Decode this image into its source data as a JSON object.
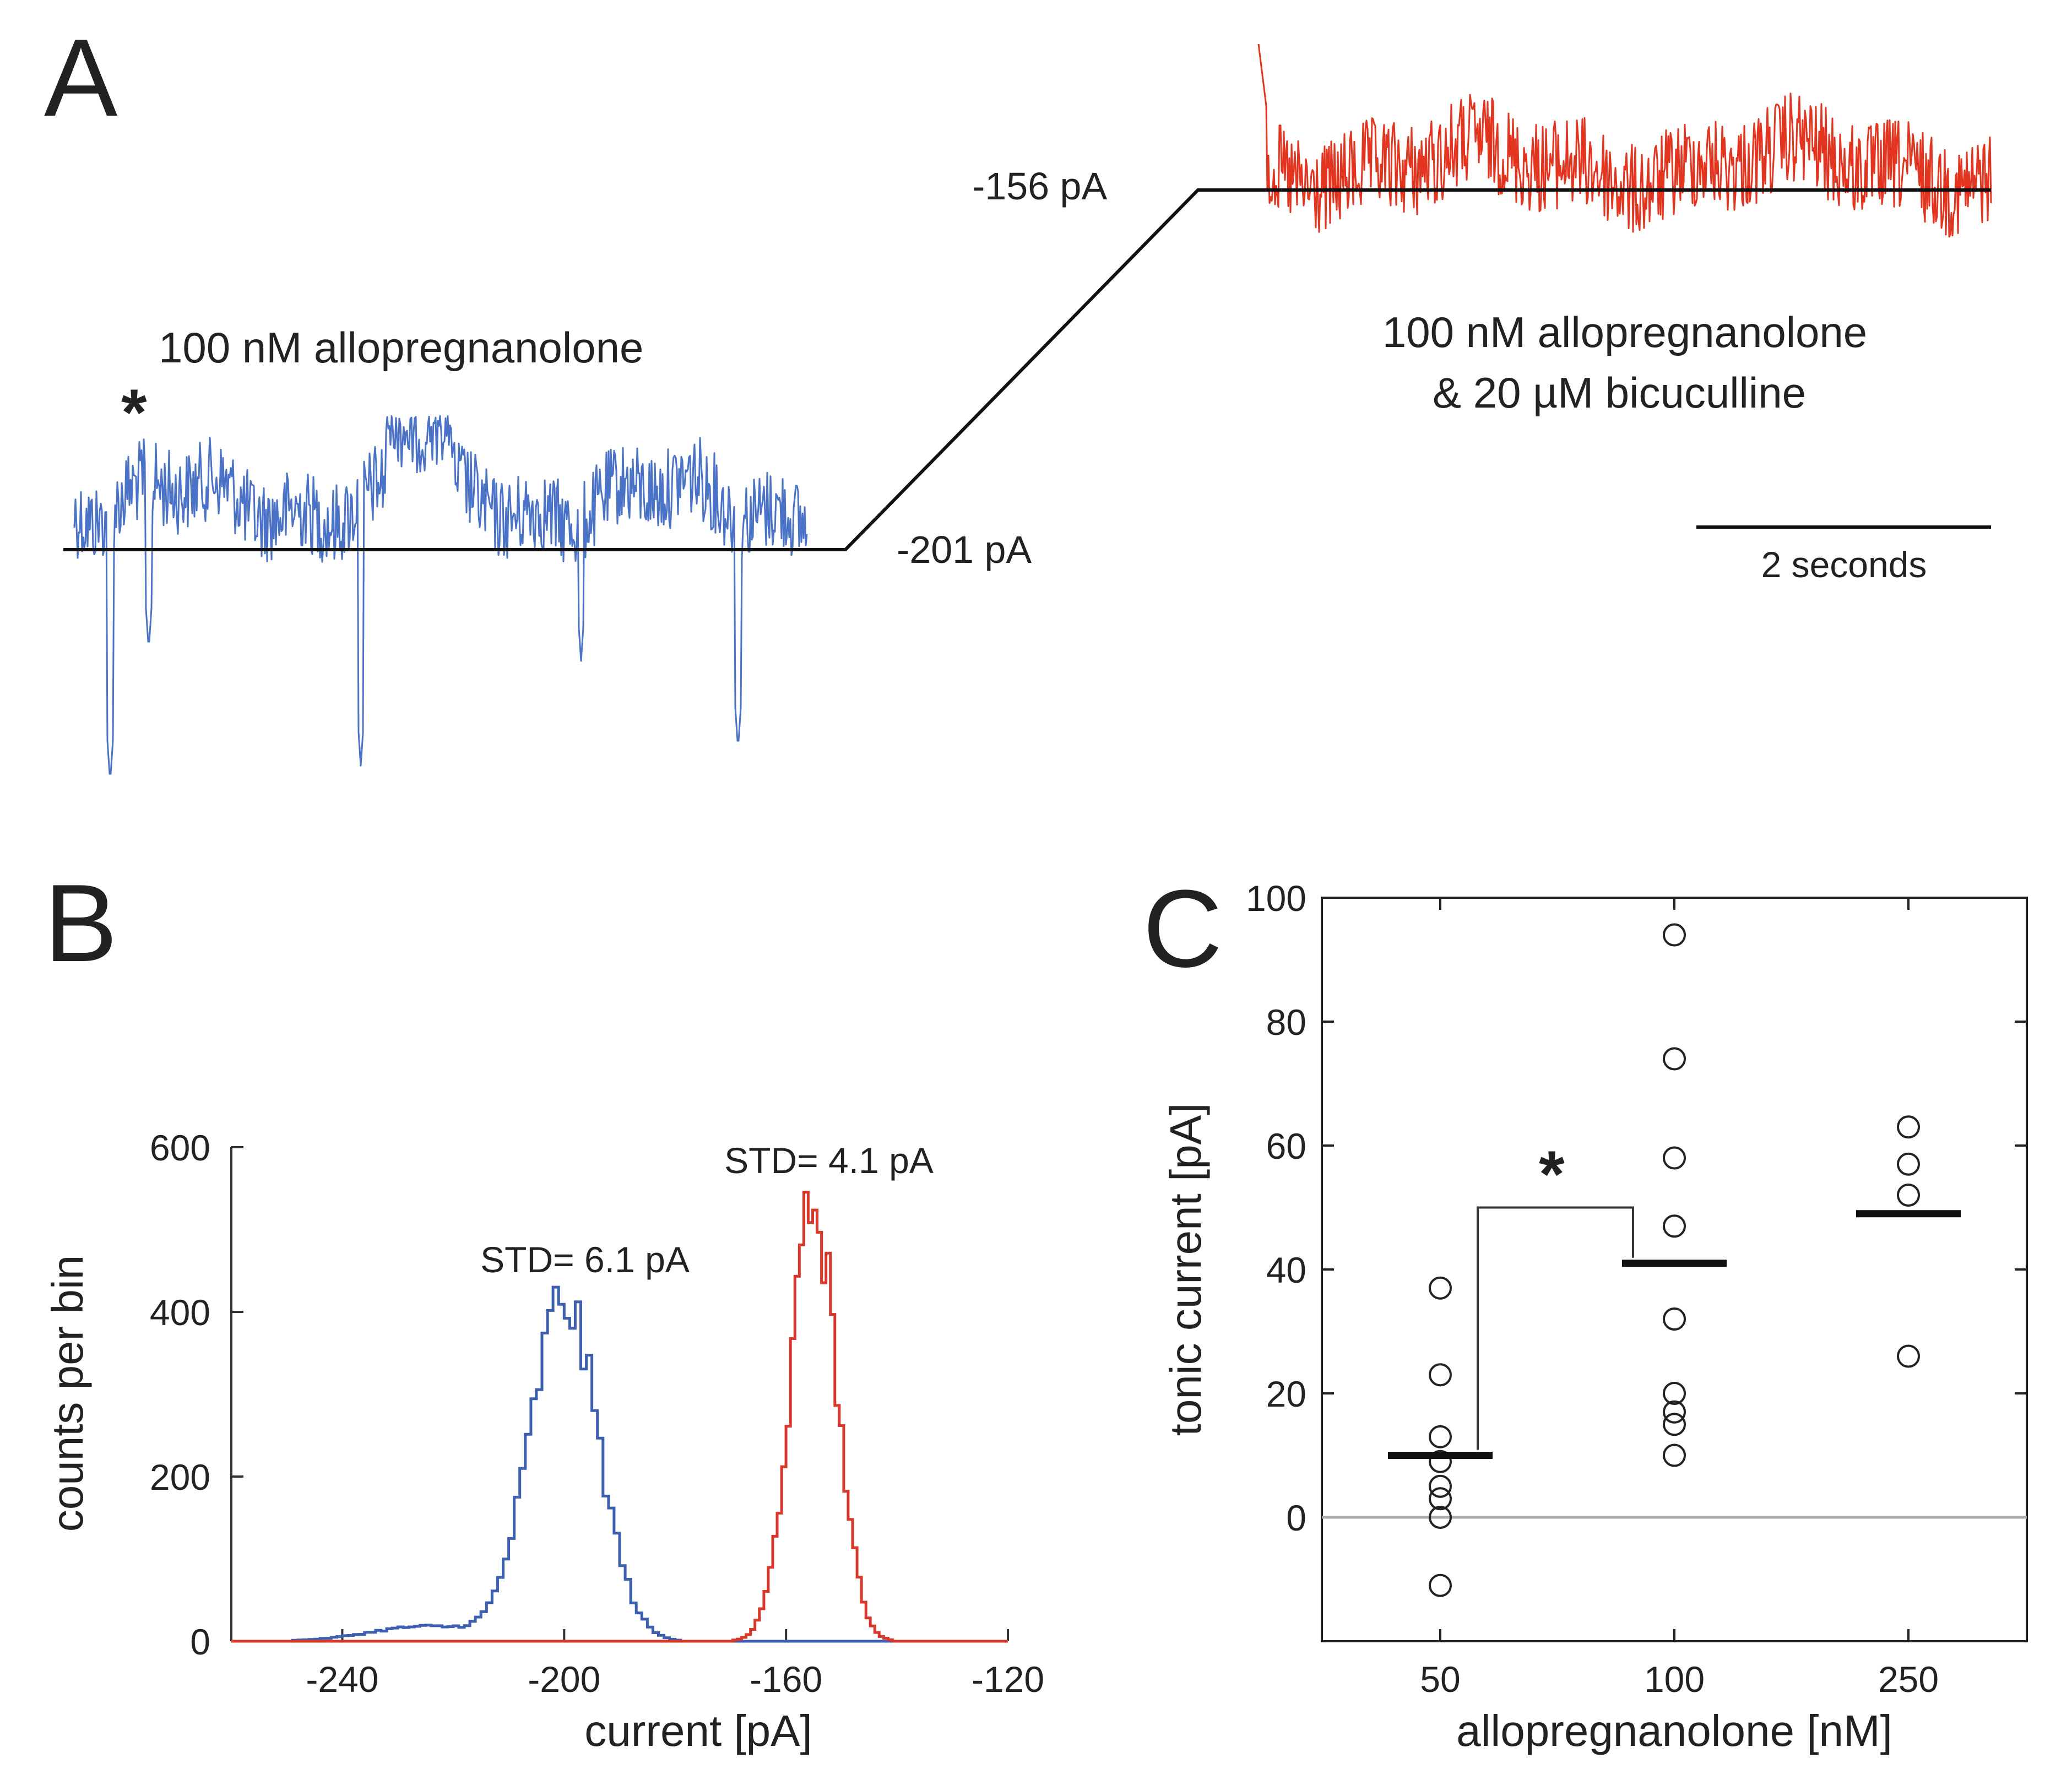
{
  "panel_a": {
    "letter": "A",
    "label_left": "100 nM allopregnanolone",
    "label_right_line1": "100 nM allopregnanolone",
    "label_right_line2": "& 20 µM bicuculline",
    "level_high": "-156 pA",
    "level_low": "-201 pA",
    "star": "*",
    "scalebar": "2 seconds",
    "colors": {
      "trace_allo": "#4a72c7",
      "trace_bic": "#e2341f",
      "baseline": "#111111"
    }
  },
  "chart_data": [
    {
      "panel": "B",
      "letter": "B",
      "type": "line",
      "xlabel": "current [pA]",
      "ylabel": "counts per bin",
      "xlim": [
        -260,
        -120
      ],
      "ylim": [
        0,
        600
      ],
      "xticks": [
        "-240",
        "-200",
        "-160",
        "-120"
      ],
      "yticks": [
        "0",
        "200",
        "400",
        "600"
      ],
      "series": [
        {
          "name": "100 nM allopregnanolone",
          "color": "#3d5fb0",
          "mean": -200,
          "std": 6.1,
          "peak": 415,
          "annotation": "STD= 6.1 pA"
        },
        {
          "name": "100 nM allopregnanolone & 20 µM bicuculline",
          "color": "#d9372a",
          "mean": -155,
          "std": 4.1,
          "peak": 530,
          "annotation": "STD= 4.1 pA"
        }
      ]
    },
    {
      "panel": "C",
      "letter": "C",
      "type": "scatter",
      "xlabel": "allopregnanolone [nM]",
      "ylabel": "tonic current [pA]",
      "categories": [
        "50",
        "100",
        "250"
      ],
      "ylim": [
        -20,
        100
      ],
      "yticks": [
        "0",
        "20",
        "40",
        "60",
        "80",
        "100"
      ],
      "points": {
        "50": [
          37,
          23,
          13,
          9,
          5,
          3,
          0,
          -11
        ],
        "100": [
          94,
          74,
          58,
          47,
          32,
          20,
          17,
          15,
          10
        ],
        "250": [
          63,
          57,
          52,
          26
        ]
      },
      "means": {
        "50": 10,
        "100": 41,
        "250": 49
      },
      "significance": {
        "between": [
          "50",
          "100"
        ],
        "label": "*"
      }
    }
  ]
}
